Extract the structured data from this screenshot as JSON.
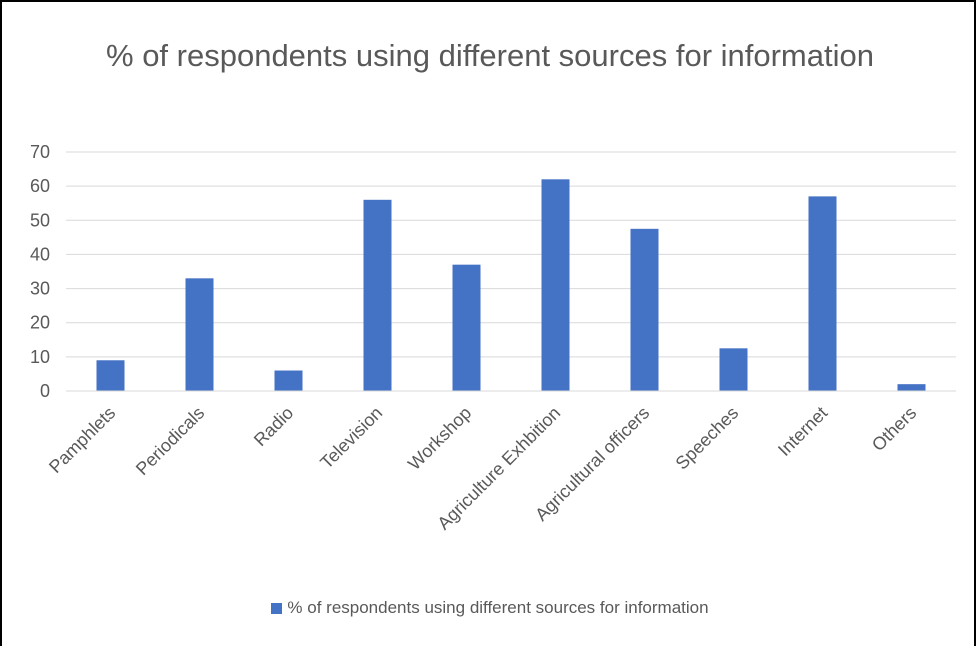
{
  "chart_data": {
    "type": "bar",
    "title": "% of respondents using different sources for information",
    "categories": [
      "Pamphlets",
      "Periodicals",
      "Radio",
      "Television",
      "Workshop",
      "Agriculture Exhbition",
      "Agricultural officers",
      "Speeches",
      "Internet",
      "Others"
    ],
    "series": [
      {
        "name": "% of respondents using different sources for information",
        "values": [
          9,
          33,
          6,
          56,
          37,
          62,
          47.5,
          12.5,
          57,
          2
        ]
      }
    ],
    "xlabel": "",
    "ylabel": "",
    "ylim": [
      0,
      70
    ],
    "yticks": [
      0,
      10,
      20,
      30,
      40,
      50,
      60,
      70
    ],
    "grid": true,
    "legend_position": "bottom",
    "colors": {
      "bar": "#4472C4",
      "grid": "#D9D9D9",
      "text": "#595959"
    }
  }
}
